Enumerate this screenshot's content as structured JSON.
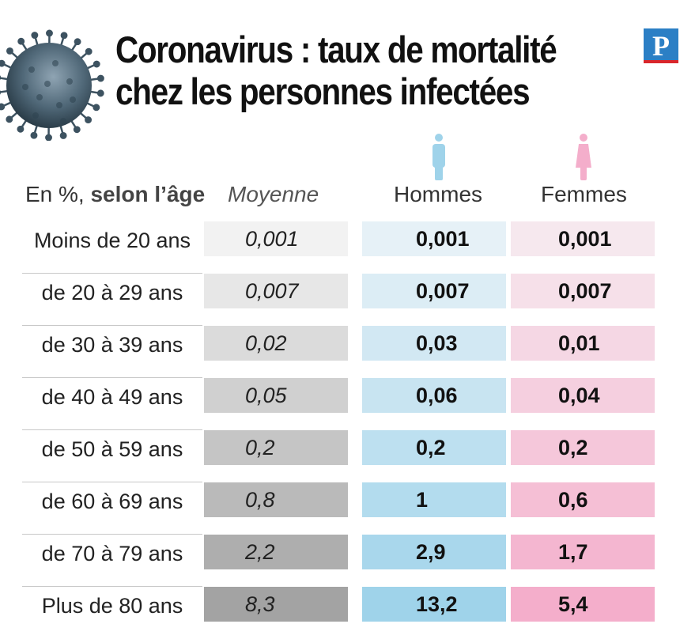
{
  "title_line1": "Coronavirus : taux de mortalité",
  "title_line2": "chez les personnes infectées",
  "logo_letter": "P",
  "colors": {
    "men": "#9fd3ea",
    "women": "#f4aecb",
    "logo_blue": "#2b7fc5",
    "logo_red": "#d9262b"
  },
  "icons": [
    "virus-icon",
    "man-icon",
    "woman-icon"
  ],
  "chart_data": {
    "type": "table",
    "title": "Coronavirus : taux de mortalité chez les personnes infectées",
    "row_header": {
      "prefix": "En %,",
      "bold": "selon l’âge"
    },
    "columns": [
      "Moyenne",
      "Hommes",
      "Femmes"
    ],
    "rows": [
      {
        "age": "Moins de 20 ans",
        "moyenne": "0,001",
        "hommes": "0,001",
        "femmes": "0,001"
      },
      {
        "age": "de 20 à 29 ans",
        "moyenne": "0,007",
        "hommes": "0,007",
        "femmes": "0,007"
      },
      {
        "age": "de 30 à 39 ans",
        "moyenne": "0,02",
        "hommes": "0,03",
        "femmes": "0,01"
      },
      {
        "age": "de 40 à 49 ans",
        "moyenne": "0,05",
        "hommes": "0,06",
        "femmes": "0,04"
      },
      {
        "age": "de 50 à 59 ans",
        "moyenne": "0,2",
        "hommes": "0,2",
        "femmes": "0,2"
      },
      {
        "age": "de 60 à 69 ans",
        "moyenne": "0,8",
        "hommes": "1",
        "femmes": "0,6"
      },
      {
        "age": "de 70 à 79 ans",
        "moyenne": "2,2",
        "hommes": "2,9",
        "femmes": "1,7"
      },
      {
        "age": "Plus de 80 ans",
        "moyenne": "8,3",
        "hommes": "13,2",
        "femmes": "5,4"
      }
    ]
  }
}
